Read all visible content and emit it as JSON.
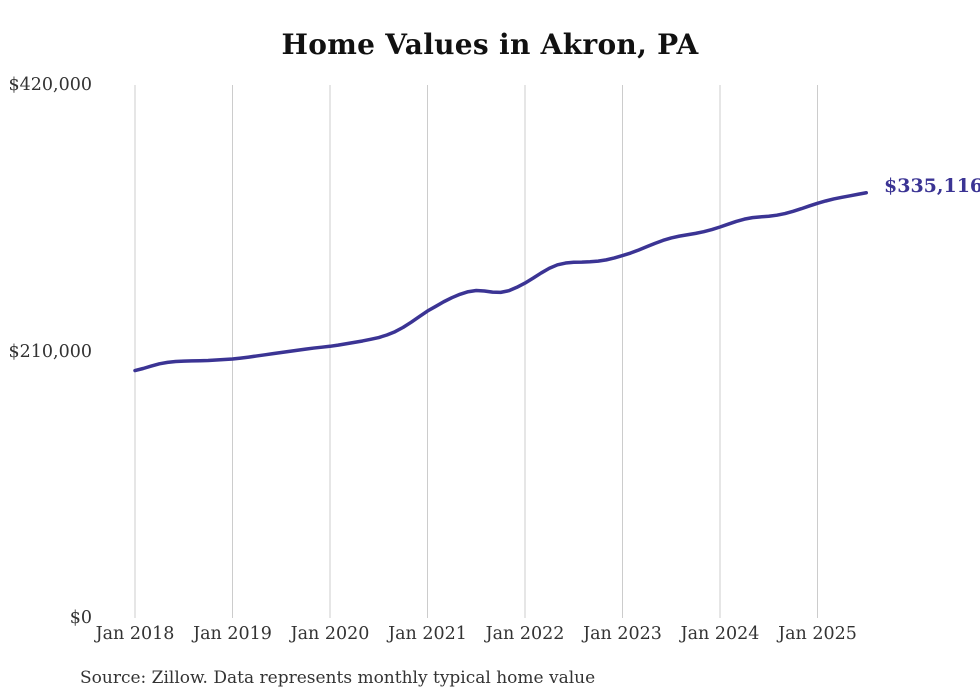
{
  "page": {
    "background": "#ffffff"
  },
  "chart_data": {
    "type": "line",
    "title": "Home Values in Akron, PA",
    "xlabel": "",
    "ylabel": "",
    "ylim": [
      0,
      420000
    ],
    "grid": "vertical",
    "grid_color": "#cccccc",
    "legend": "none",
    "line_color": "#3b3494",
    "text_color": "#333333",
    "end_label": "$335,116",
    "end_value": 335116,
    "x_ticks": [
      "Jan 2018",
      "Jan 2019",
      "Jan 2020",
      "Jan 2021",
      "Jan 2022",
      "Jan 2023",
      "Jan 2024",
      "Jan 2025"
    ],
    "y_ticks": [
      {
        "value": 420000,
        "label": "$420,000"
      },
      {
        "value": 210000,
        "label": "$210,000"
      },
      {
        "value": 0,
        "label": "$0"
      }
    ],
    "series": [
      {
        "name": "Monthly typical home value",
        "x_start": "2018-01",
        "frequency": "monthly",
        "values": [
          195000,
          196600,
          198500,
          200300,
          201400,
          202100,
          202400,
          202600,
          202700,
          202900,
          203300,
          203700,
          204100,
          204800,
          205600,
          206500,
          207400,
          208300,
          209200,
          210100,
          211000,
          211900,
          212700,
          213400,
          214100,
          215000,
          216100,
          217200,
          218300,
          219600,
          221000,
          223000,
          225600,
          229000,
          233100,
          237500,
          241900,
          245500,
          249200,
          252400,
          255100,
          257100,
          258100,
          257700,
          256800,
          256600,
          257900,
          260600,
          263900,
          267800,
          271900,
          275600,
          278300,
          279700,
          280300,
          280400,
          280700,
          281200,
          282200,
          283700,
          285600,
          287600,
          290000,
          292600,
          295200,
          297600,
          299500,
          300900,
          302000,
          303100,
          304400,
          306100,
          308100,
          310300,
          312500,
          314300,
          315500,
          316100,
          316600,
          317400,
          318700,
          320500,
          322500,
          324700,
          326800,
          328600,
          330200,
          331500,
          332700,
          333900,
          335116
        ]
      }
    ]
  },
  "source_note": "Source: Zillow. Data represents monthly typical home value"
}
